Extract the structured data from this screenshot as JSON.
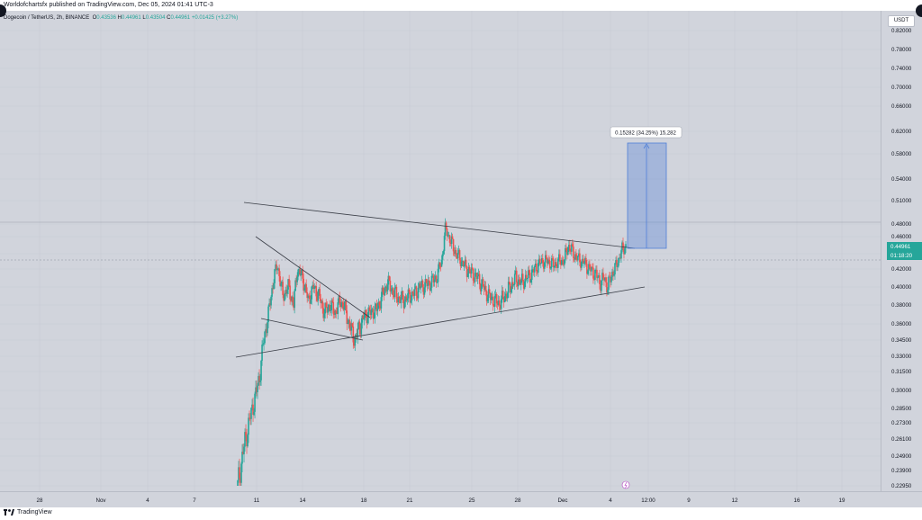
{
  "header": {
    "published": "Worldofchartsfx published on TradingView.com, Dec 05, 2024 01:41 UTC-3"
  },
  "legend": {
    "symbol": "Dogecoin / TetherUS, 2h, BINANCE",
    "o_label": "O",
    "o": "0.43536",
    "h_label": "H",
    "h": "0.44961",
    "l_label": "L",
    "l": "0.43504",
    "c_label": "C",
    "c": "0.44961",
    "change": "+0.01425 (+3.27%)"
  },
  "currency": "USDT",
  "last_price": {
    "value": "0.44961",
    "countdown": "01:18:20"
  },
  "measure_label": "0.15282 (34.25%) 15,282",
  "footer": {
    "brand": "TradingView"
  },
  "colors": {
    "up": "#26a69a",
    "down": "#ef5350",
    "measure": "#4f7fd8",
    "background": "#d1d4dc"
  },
  "chart_data": {
    "type": "candlestick",
    "symbol": "Dogecoin / TetherUS",
    "interval": "2h",
    "exchange": "BINANCE",
    "price_ticks": [
      "0.82000",
      "0.78000",
      "0.74000",
      "0.70000",
      "0.66000",
      "0.62000",
      "0.58000",
      "0.54000",
      "0.51000",
      "0.48000",
      "0.46000",
      "0.44000",
      "0.42000",
      "0.40000",
      "0.38000",
      "0.36000",
      "0.34500",
      "0.33000",
      "0.31500",
      "0.30000",
      "0.28500",
      "0.27300",
      "0.26100",
      "0.24900",
      "0.23900",
      "0.22950"
    ],
    "time_ticks": [
      "28",
      "Nov",
      "4",
      "7",
      "11",
      "14",
      "18",
      "21",
      "25",
      "28",
      "Dec",
      "4",
      "12:00",
      "9",
      "12",
      "16",
      "19"
    ],
    "close_path": [
      [
        0,
        0.229
      ],
      [
        6,
        0.252
      ],
      [
        12,
        0.272
      ],
      [
        18,
        0.29
      ],
      [
        24,
        0.31
      ],
      [
        28,
        0.34
      ],
      [
        34,
        0.37
      ],
      [
        40,
        0.41
      ],
      [
        44,
        0.425
      ],
      [
        50,
        0.39
      ],
      [
        56,
        0.4
      ],
      [
        62,
        0.38
      ],
      [
        66,
        0.42
      ],
      [
        72,
        0.41
      ],
      [
        78,
        0.385
      ],
      [
        84,
        0.4
      ],
      [
        90,
        0.39
      ],
      [
        96,
        0.372
      ],
      [
        102,
        0.38
      ],
      [
        108,
        0.372
      ],
      [
        114,
        0.385
      ],
      [
        118,
        0.378
      ],
      [
        124,
        0.358
      ],
      [
        130,
        0.345
      ],
      [
        136,
        0.36
      ],
      [
        142,
        0.37
      ],
      [
        148,
        0.372
      ],
      [
        154,
        0.375
      ],
      [
        160,
        0.39
      ],
      [
        166,
        0.405
      ],
      [
        172,
        0.395
      ],
      [
        178,
        0.388
      ],
      [
        184,
        0.385
      ],
      [
        190,
        0.39
      ],
      [
        196,
        0.393
      ],
      [
        202,
        0.4
      ],
      [
        208,
        0.402
      ],
      [
        214,
        0.405
      ],
      [
        220,
        0.41
      ],
      [
        226,
        0.43
      ],
      [
        230,
        0.472
      ],
      [
        236,
        0.455
      ],
      [
        242,
        0.44
      ],
      [
        248,
        0.43
      ],
      [
        254,
        0.42
      ],
      [
        260,
        0.415
      ],
      [
        266,
        0.41
      ],
      [
        272,
        0.4
      ],
      [
        278,
        0.39
      ],
      [
        284,
        0.385
      ],
      [
        290,
        0.382
      ],
      [
        296,
        0.39
      ],
      [
        302,
        0.4
      ],
      [
        308,
        0.41
      ],
      [
        314,
        0.405
      ],
      [
        320,
        0.41
      ],
      [
        326,
        0.415
      ],
      [
        332,
        0.425
      ],
      [
        338,
        0.43
      ],
      [
        344,
        0.43
      ],
      [
        350,
        0.425
      ],
      [
        356,
        0.43
      ],
      [
        362,
        0.432
      ],
      [
        366,
        0.45
      ],
      [
        372,
        0.44
      ],
      [
        378,
        0.432
      ],
      [
        384,
        0.428
      ],
      [
        390,
        0.42
      ],
      [
        396,
        0.415
      ],
      [
        402,
        0.405
      ],
      [
        406,
        0.41
      ],
      [
        410,
        0.4
      ],
      [
        416,
        0.418
      ],
      [
        420,
        0.425
      ],
      [
        424,
        0.44
      ],
      [
        430,
        0.4496
      ]
    ],
    "annotations": [
      {
        "type": "trendline",
        "label": ""
      },
      {
        "type": "price_range",
        "value": "0.15282 (34.25%) 15,282"
      }
    ],
    "grid": true,
    "ylim": [
      0.2295,
      0.82
    ]
  }
}
